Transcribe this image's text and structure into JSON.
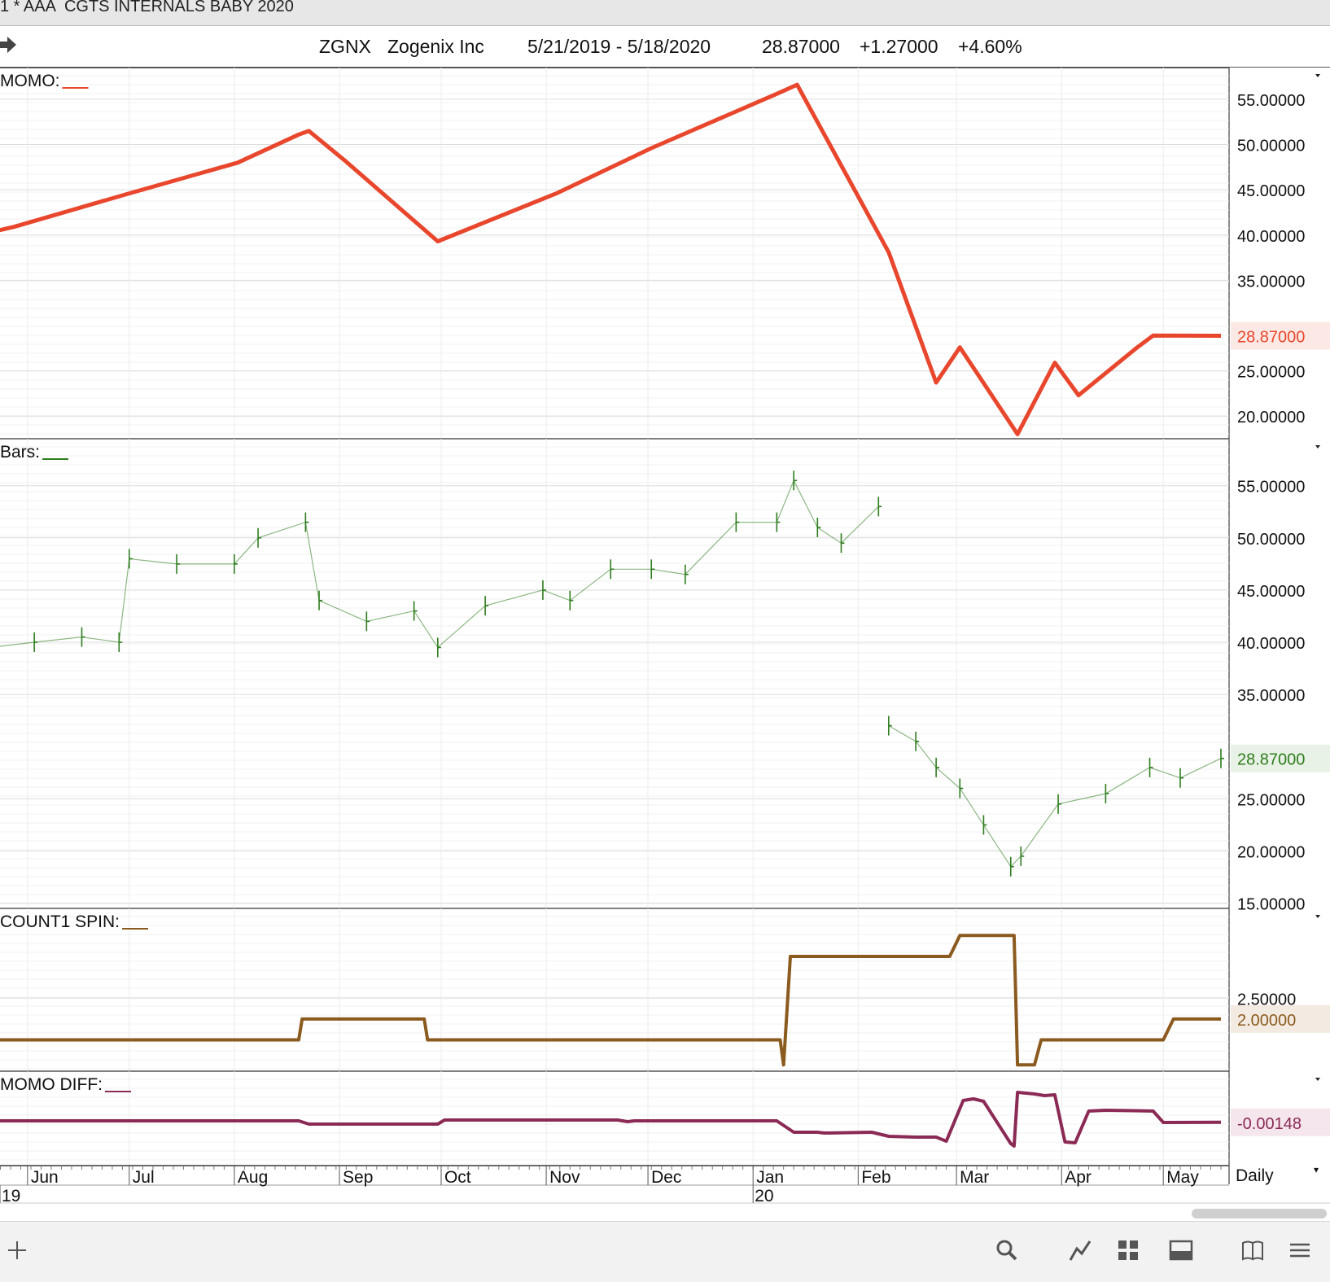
{
  "window": {
    "title": "1 * AAA  CGTS INTERNALS BABY 2020"
  },
  "info": {
    "symbol": "ZGNX",
    "company": "Zogenix Inc",
    "range": "5/21/2019 - 5/18/2020",
    "last": "28.87000",
    "change": "+1.27000",
    "pct": "+4.60%"
  },
  "footer": {
    "period": "Daily"
  },
  "chart_data": {
    "type": "line",
    "x_range": [
      "2019-05-21",
      "2020-05-18"
    ],
    "x_axis": {
      "months": [
        {
          "date": "2019-06-01",
          "label": "Jun"
        },
        {
          "date": "2019-07-01",
          "label": "Jul"
        },
        {
          "date": "2019-08-01",
          "label": "Aug"
        },
        {
          "date": "2019-09-01",
          "label": "Sep"
        },
        {
          "date": "2019-10-01",
          "label": "Oct"
        },
        {
          "date": "2019-11-01",
          "label": "Nov"
        },
        {
          "date": "2019-12-01",
          "label": "Dec"
        },
        {
          "date": "2020-01-01",
          "label": "Jan"
        },
        {
          "date": "2020-02-01",
          "label": "Feb"
        },
        {
          "date": "2020-03-01",
          "label": "Mar"
        },
        {
          "date": "2020-04-01",
          "label": "Apr"
        },
        {
          "date": "2020-05-01",
          "label": "May"
        }
      ],
      "years": [
        {
          "date": "2019-05-21",
          "label": "19"
        },
        {
          "date": "2020-01-01",
          "label": "20"
        }
      ]
    },
    "panels": [
      {
        "name": "MOMO",
        "legend": "MOMO:",
        "color": "#e8472d",
        "ylim": [
          17.5,
          58.5
        ],
        "ticks": [
          "55.00000",
          "50.00000",
          "45.00000",
          "40.00000",
          "35.00000",
          "25.00000",
          "20.00000"
        ],
        "tick_values": [
          55,
          50,
          45,
          40,
          35,
          25,
          20
        ],
        "last_label": "28.87000",
        "last_value": 28.87,
        "series": [
          {
            "type": "line",
            "x": [
              "2019-05-21",
              "2019-05-28",
              "2019-07-01",
              "2019-08-02",
              "2019-08-20",
              "2019-08-23",
              "2019-09-03",
              "2019-09-30",
              "2019-11-04",
              "2019-12-02",
              "2020-01-08",
              "2020-01-14",
              "2020-02-10",
              "2020-02-24",
              "2020-03-02",
              "2020-03-19",
              "2020-03-30",
              "2020-04-06",
              "2020-04-23",
              "2020-04-28",
              "2020-05-18"
            ],
            "values": [
              40.3,
              40.9,
              44.6,
              48.0,
              51.1,
              51.5,
              48.1,
              39.3,
              44.6,
              49.6,
              55.6,
              56.6,
              38.1,
              23.7,
              27.6,
              18.0,
              25.9,
              22.3,
              27.5,
              28.9,
              28.87
            ]
          }
        ]
      },
      {
        "name": "Bars",
        "legend": "Bars:",
        "color": "#2e7d1e",
        "ylim": [
          14.5,
          59.5
        ],
        "ticks": [
          "55.00000",
          "50.00000",
          "45.00000",
          "40.00000",
          "35.00000",
          "25.00000",
          "20.00000",
          "15.00000"
        ],
        "tick_values": [
          55,
          50,
          45,
          40,
          35,
          25,
          20,
          15
        ],
        "last_label": "28.87000",
        "last_value": 28.87,
        "series": [
          {
            "name": "ZGNX",
            "type": "ohlc-close",
            "x": [
              "2019-05-21",
              "2019-06-03",
              "2019-06-17",
              "2019-06-28",
              "2019-07-01",
              "2019-07-15",
              "2019-08-01",
              "2019-08-08",
              "2019-08-22",
              "2019-08-26",
              "2019-09-09",
              "2019-09-23",
              "2019-09-30",
              "2019-10-14",
              "2019-10-31",
              "2019-11-08",
              "2019-11-20",
              "2019-12-02",
              "2019-12-12",
              "2019-12-27",
              "2020-01-08",
              "2020-01-13",
              "2020-01-20",
              "2020-01-27",
              "2020-02-07",
              "2020-02-10",
              "2020-02-18",
              "2020-02-24",
              "2020-03-02",
              "2020-03-09",
              "2020-03-17",
              "2020-03-20",
              "2020-03-31",
              "2020-04-14",
              "2020-04-27",
              "2020-05-06",
              "2020-05-18"
            ],
            "values": [
              39.5,
              40.0,
              40.5,
              40.0,
              48.0,
              47.5,
              47.5,
              50.0,
              51.5,
              44.0,
              42.0,
              43.0,
              39.5,
              43.5,
              45.0,
              44.0,
              47.0,
              47.0,
              46.5,
              51.5,
              51.5,
              55.5,
              51.0,
              49.5,
              53.0,
              32.0,
              30.5,
              28.0,
              26.0,
              22.5,
              18.5,
              19.5,
              24.5,
              25.5,
              28.0,
              27.0,
              28.87
            ]
          }
        ]
      },
      {
        "name": "COUNT1 SPIN",
        "legend": "COUNT1 SPIN:",
        "color": "#8b5a1e",
        "ylim": [
          0.75,
          4.65
        ],
        "ticks": [
          "2.50000"
        ],
        "tick_values": [
          2.5
        ],
        "last_label": "2.00000",
        "last_value": 2.0,
        "series": [
          {
            "type": "step",
            "x": [
              "2019-05-21",
              "2019-08-20",
              "2019-08-21",
              "2019-09-26",
              "2019-09-27",
              "2020-01-09",
              "2020-01-10",
              "2020-01-12",
              "2020-02-28",
              "2020-03-02",
              "2020-03-18",
              "2020-03-19",
              "2020-03-24",
              "2020-03-26",
              "2020-05-01",
              "2020-05-04",
              "2020-05-18"
            ],
            "values": [
              1.5,
              1.5,
              2.0,
              2.0,
              1.5,
              1.5,
              0.9,
              3.5,
              3.5,
              4.0,
              4.0,
              0.9,
              0.9,
              1.5,
              1.5,
              2.0,
              2.0
            ]
          }
        ]
      },
      {
        "name": "MOMO DIFF",
        "legend": "MOMO DIFF:",
        "color": "#8b2a55",
        "ylim": [
          -0.0068,
          0.0048
        ],
        "ticks": [],
        "tick_values": [],
        "last_label": "-0.00148",
        "last_value": -0.00148,
        "series": [
          {
            "type": "line",
            "x": [
              "2019-05-21",
              "2019-08-20",
              "2019-08-23",
              "2019-09-30",
              "2019-10-02",
              "2019-11-22",
              "2019-11-25",
              "2019-11-27",
              "2020-01-08",
              "2020-01-13",
              "2020-01-20",
              "2020-01-22",
              "2020-02-05",
              "2020-02-10",
              "2020-02-18",
              "2020-02-24",
              "2020-02-27",
              "2020-03-03",
              "2020-03-06",
              "2020-03-09",
              "2020-03-17",
              "2020-03-18",
              "2020-03-19",
              "2020-03-24",
              "2020-03-27",
              "2020-03-30",
              "2020-04-02",
              "2020-04-05",
              "2020-04-09",
              "2020-04-14",
              "2020-04-28",
              "2020-05-01",
              "2020-05-18"
            ],
            "values": [
              -0.0013,
              -0.0013,
              -0.0017,
              -0.0017,
              -0.0012,
              -0.0012,
              -0.0014,
              -0.0013,
              -0.0013,
              -0.0027,
              -0.0027,
              -0.0028,
              -0.0027,
              -0.0032,
              -0.0033,
              -0.0033,
              -0.0038,
              0.0012,
              0.0014,
              0.0011,
              -0.0041,
              -0.0044,
              0.0022,
              0.002,
              0.0018,
              0.0019,
              -0.0039,
              -0.004,
              -0.0001,
              0.0,
              -0.0001,
              -0.0015,
              -0.00148
            ]
          }
        ]
      }
    ]
  }
}
